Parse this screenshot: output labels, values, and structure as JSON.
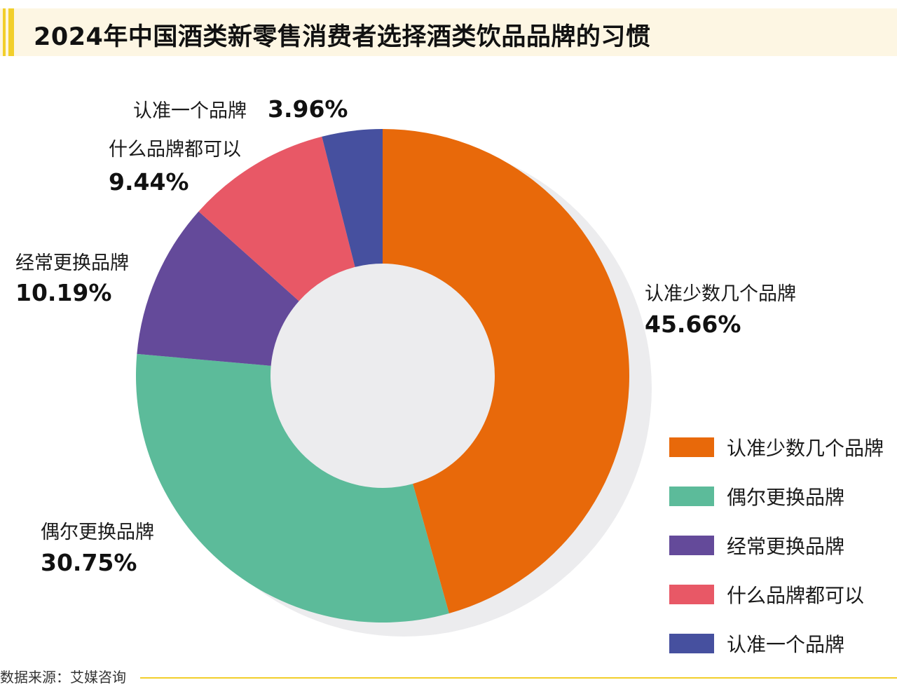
{
  "title": "2024年中国酒类新零售消费者选择酒类饮品品牌的习惯",
  "source": "数据来源：艾媒咨询",
  "colors": {
    "title_bg": "#fdf6e3",
    "accent": "#f2cf2b",
    "shadow": "#ececee"
  },
  "chart_data": {
    "type": "pie",
    "donut": true,
    "title": "2024年中国酒类新零售消费者选择酒类饮品品牌的习惯",
    "categories": [
      "认准少数几个品牌",
      "偶尔更换品牌",
      "经常更换品牌",
      "什么品牌都可以",
      "认准一个品牌"
    ],
    "values": [
      45.66,
      30.75,
      10.19,
      9.44,
      3.96
    ],
    "value_labels": [
      "45.66%",
      "30.75%",
      "10.19%",
      "9.44%",
      "3.96%"
    ],
    "colors": [
      "#e8690a",
      "#5cbb9a",
      "#644a9a",
      "#e85866",
      "#46509f"
    ],
    "legend_position": "bottom-right"
  }
}
